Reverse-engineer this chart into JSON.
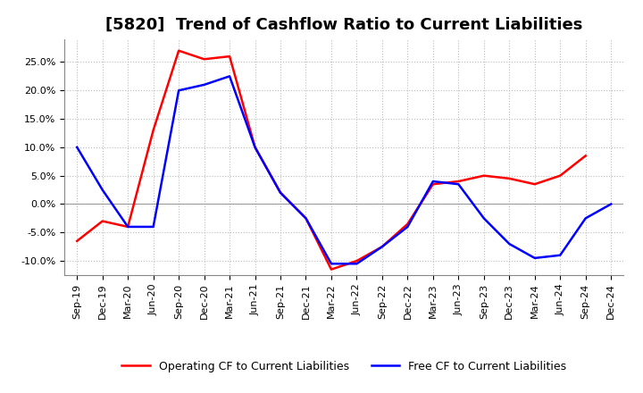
{
  "title": "[5820]  Trend of Cashflow Ratio to Current Liabilities",
  "x_labels": [
    "Sep-19",
    "Dec-19",
    "Mar-20",
    "Jun-20",
    "Sep-20",
    "Dec-20",
    "Mar-21",
    "Jun-21",
    "Sep-21",
    "Dec-21",
    "Mar-22",
    "Jun-22",
    "Sep-22",
    "Dec-22",
    "Mar-23",
    "Jun-23",
    "Sep-23",
    "Dec-23",
    "Mar-24",
    "Jun-24",
    "Sep-24",
    "Dec-24"
  ],
  "operating_cf": [
    -6.5,
    -3.0,
    -4.0,
    13.0,
    27.0,
    25.5,
    26.0,
    10.0,
    2.0,
    -2.5,
    -11.5,
    -10.0,
    -7.5,
    -3.5,
    3.5,
    4.0,
    5.0,
    4.5,
    3.5,
    5.0,
    8.5,
    null
  ],
  "free_cf": [
    10.0,
    2.5,
    -4.0,
    -4.0,
    20.0,
    21.0,
    22.5,
    10.0,
    2.0,
    -2.5,
    -10.5,
    -10.5,
    -7.5,
    -4.0,
    4.0,
    3.5,
    -2.5,
    -7.0,
    -9.5,
    -9.0,
    -2.5,
    0.0
  ],
  "operating_color": "#ff0000",
  "free_color": "#0000ff",
  "ylim": [
    -12.5,
    29.0
  ],
  "yticks": [
    -10.0,
    -5.0,
    0.0,
    5.0,
    10.0,
    15.0,
    20.0,
    25.0
  ],
  "background_color": "#ffffff",
  "plot_bg_color": "#ffffff",
  "grid_color": "#bbbbbb",
  "title_fontsize": 13,
  "legend_fontsize": 9,
  "tick_fontsize": 8
}
